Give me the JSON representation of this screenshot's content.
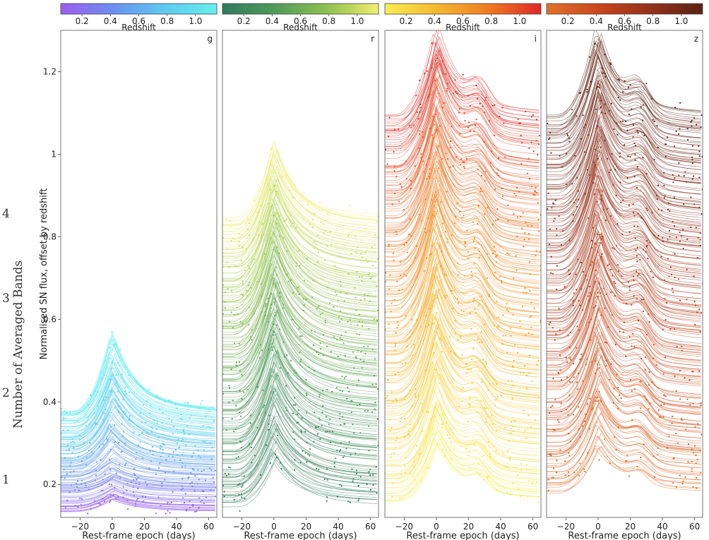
{
  "figure": {
    "outer_ylabel": "Number of Averaged Bands",
    "outer_ticks": [
      "1",
      "2",
      "3",
      "4"
    ],
    "ylabel": "Normalised SN flux, offset by redshift",
    "xlabel": "Rest-frame epoch (days)"
  },
  "chart_data": [
    {
      "type": "line",
      "band": "g",
      "colorbar_label": "Redshift",
      "colorbar_ticks": [
        "0.2",
        "0.4",
        "0.6",
        "0.8",
        "1.0"
      ],
      "colorbar_range": [
        0.05,
        1.15
      ],
      "colormap": [
        "#a05cf0",
        "#6a8ff0",
        "#5ecbf0",
        "#66efef"
      ],
      "xlim": [
        -32,
        65
      ],
      "ylim": [
        0.12,
        1.3
      ],
      "x_ticks": [
        "-20",
        "0",
        "20",
        "40",
        "60"
      ],
      "y_ticks": [
        "0.2",
        "0.4",
        "0.6",
        "0.8",
        "1",
        "1.2"
      ],
      "curve_peak_range": [
        0.05,
        0.57
      ],
      "curve_baseline_range": [
        0.13,
        0.38
      ],
      "curves": 150
    },
    {
      "type": "line",
      "band": "r",
      "colorbar_label": "Redshift",
      "colorbar_ticks": [
        "0.2",
        "0.4",
        "0.6",
        "0.8",
        "1.0"
      ],
      "colorbar_range": [
        0.05,
        1.15
      ],
      "colormap": [
        "#2f7a5f",
        "#4f9a5a",
        "#8ec050",
        "#f2f070"
      ],
      "xlim": [
        -32,
        65
      ],
      "ylim": [
        0.12,
        1.3
      ],
      "x_ticks": [
        "-20",
        "0",
        "20",
        "40",
        "60"
      ],
      "y_ticks": [],
      "curve_peak_range": [
        0.26,
        1.03
      ],
      "curve_baseline_range": [
        0.15,
        0.84
      ],
      "curves": 210
    },
    {
      "type": "line",
      "band": "i",
      "colorbar_label": "Redshift",
      "colorbar_ticks": [
        "0.2",
        "0.4",
        "0.6",
        "0.8",
        "1.0"
      ],
      "colorbar_range": [
        0.05,
        1.15
      ],
      "colormap": [
        "#f8ee50",
        "#f6b830",
        "#ef7a22",
        "#e02828"
      ],
      "xlim": [
        -32,
        65
      ],
      "ylim": [
        0.12,
        1.3
      ],
      "x_ticks": [
        "-20",
        "0",
        "20",
        "40",
        "60"
      ],
      "y_ticks": [],
      "curve_peak_range": [
        0.28,
        1.3
      ],
      "curve_baseline_range": [
        0.15,
        1.1
      ],
      "curves": 240
    },
    {
      "type": "line",
      "band": "z",
      "colorbar_label": "Redshift",
      "colorbar_ticks": [
        "0.2",
        "0.4",
        "0.6",
        "0.8",
        "1.0"
      ],
      "colorbar_range": [
        0.05,
        1.15
      ],
      "colormap": [
        "#e2702a",
        "#c9461c",
        "#94301a",
        "#5a2214"
      ],
      "xlim": [
        -32,
        65
      ],
      "ylim": [
        0.12,
        1.3
      ],
      "x_ticks": [
        "-20",
        "0",
        "20",
        "40",
        "60"
      ],
      "y_ticks": [],
      "curve_peak_range": [
        0.28,
        1.3
      ],
      "curve_baseline_range": [
        0.18,
        1.1
      ],
      "curves": 240
    }
  ]
}
